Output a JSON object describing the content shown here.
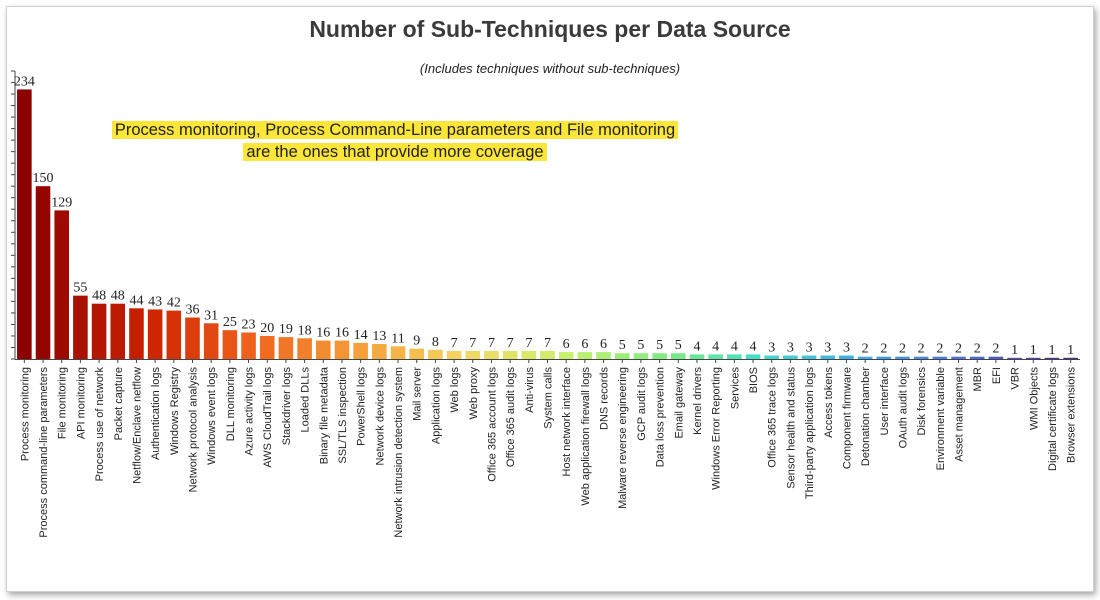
{
  "chart_data": {
    "type": "bar",
    "title": "Number of Sub-Techniques per Data Source",
    "subtitle": "(Includes techniques without sub-techniques)",
    "annotation": [
      "Process monitoring, Process Command-Line parameters and File monitoring",
      "are the ones that provide more coverage"
    ],
    "categories": [
      "Process monitoring",
      "Process command-line parameters",
      "File monitoring",
      "API monitoring",
      "Process use of network",
      "Packet capture",
      "Netflow/Enclave netflow",
      "Authentication logs",
      "Windows Registry",
      "Network protocol analysis",
      "Windows event logs",
      "DLL monitoring",
      "Azure activity logs",
      "AWS CloudTrail logs",
      "Stackdriver logs",
      "Loaded DLLs",
      "Binary file metadata",
      "SSL/TLS inspection",
      "PowerShell logs",
      "Network device logs",
      "Network intrusion detection system",
      "Mail server",
      "Application logs",
      "Web logs",
      "Web proxy",
      "Office 365 account logs",
      "Office 365 audit logs",
      "Anti-virus",
      "System calls",
      "Host network interface",
      "Web application firewall logs",
      "DNS records",
      "Malware reverse engineering",
      "GCP audit logs",
      "Data loss prevention",
      "Email gateway",
      "Kernel drivers",
      "Windows Error Reporting",
      "Services",
      "BIOS",
      "Office 365 trace logs",
      "Sensor health and status",
      "Third-party application logs",
      "Access tokens",
      "Component firmware",
      "Detonation chamber",
      "User interface",
      "OAuth audit logs",
      "Disk forensics",
      "Environment variable",
      "Asset management",
      "MBR",
      "EFI",
      "VBR",
      "WMI Objects",
      "Digital certificate logs",
      "Browser extensions"
    ],
    "values": [
      234,
      150,
      129,
      55,
      48,
      48,
      44,
      43,
      42,
      36,
      31,
      25,
      23,
      20,
      19,
      18,
      16,
      16,
      14,
      13,
      11,
      9,
      8,
      7,
      7,
      7,
      7,
      7,
      7,
      6,
      6,
      6,
      5,
      5,
      5,
      5,
      4,
      4,
      4,
      4,
      3,
      3,
      3,
      3,
      3,
      2,
      2,
      2,
      2,
      2,
      2,
      2,
      2,
      1,
      1,
      1,
      1
    ],
    "ylim": [
      0,
      250
    ],
    "grid": false,
    "legend": "none"
  }
}
